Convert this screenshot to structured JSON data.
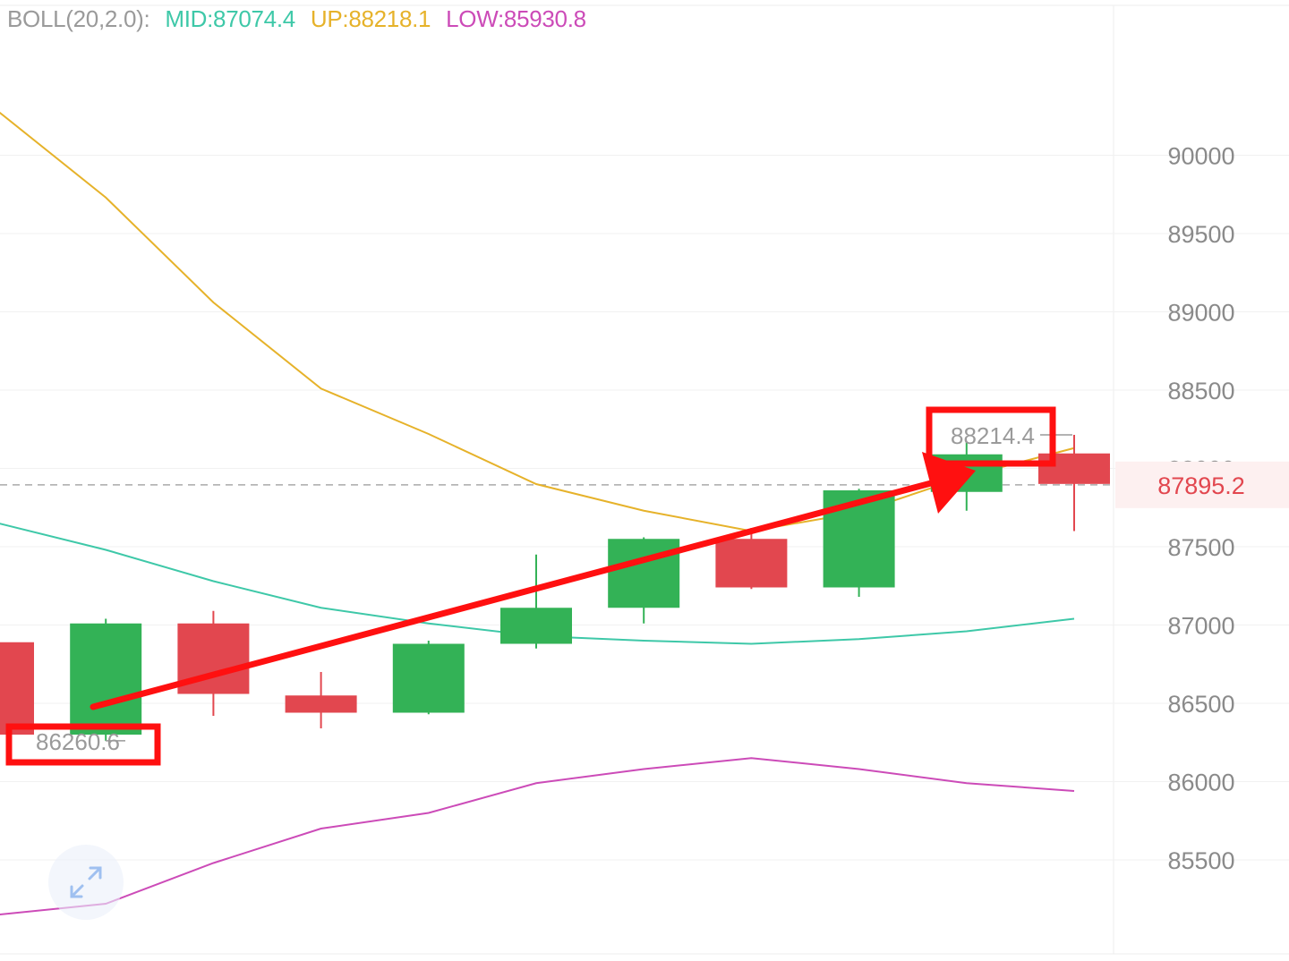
{
  "legend": {
    "indicator": "BOLL(20,2.0):",
    "mid": "MID:87074.4",
    "up": "UP:88218.1",
    "low": "LOW:85930.8"
  },
  "colors": {
    "bullish": "#33b256",
    "bearish": "#e2474f",
    "mid": "#3ec8a8",
    "up": "#e6b22a",
    "low": "#cc4bb8",
    "axis_text": "#8a8a8a",
    "grid": "#f1f1f1",
    "arrow": "#ff1010",
    "last_price": "#e2474f",
    "last_price_bg": "#fdf0f0"
  },
  "expand_icon": "expand-arrows-icon",
  "chart_data": {
    "type": "candlestick",
    "ylim": [
      84850,
      91250
    ],
    "y_ticks": [
      "85500",
      "86000",
      "86500",
      "87000",
      "87500",
      "88000",
      "88500",
      "89000",
      "89500",
      "90000"
    ],
    "candles": [
      {
        "open": 86890,
        "close": 86300,
        "high": 86890,
        "low": 86280
      },
      {
        "open": 86300,
        "close": 87010,
        "high": 87040,
        "low": 86260.6
      },
      {
        "open": 87010,
        "close": 86560,
        "high": 87090,
        "low": 86420
      },
      {
        "open": 86550,
        "close": 86440,
        "high": 86700,
        "low": 86340
      },
      {
        "open": 86440,
        "close": 86880,
        "high": 86900,
        "low": 86430
      },
      {
        "open": 86880,
        "close": 87110,
        "high": 87450,
        "low": 86850
      },
      {
        "open": 87110,
        "close": 87550,
        "high": 87560,
        "low": 87010
      },
      {
        "open": 87550,
        "close": 87240,
        "high": 87620,
        "low": 87230
      },
      {
        "open": 87240,
        "close": 87860,
        "high": 87870,
        "low": 87180
      },
      {
        "open": 87850,
        "close": 88090,
        "high": 88170,
        "low": 87730
      },
      {
        "open": 88090,
        "close": 87895.2,
        "high": 88214.4,
        "low": 87600
      }
    ],
    "series": [
      {
        "name": "UP",
        "values": [
          90280,
          89730,
          89060,
          88510,
          88220,
          87900,
          87730,
          87600,
          87720,
          87950,
          88130
        ]
      },
      {
        "name": "MID",
        "values": [
          87650,
          87480,
          87280,
          87110,
          87010,
          86930,
          86900,
          86880,
          86910,
          86960,
          87040
        ]
      },
      {
        "name": "LOW",
        "values": [
          85150,
          85220,
          85480,
          85700,
          85800,
          85990,
          86080,
          86150,
          86080,
          85990,
          85940
        ]
      }
    ],
    "last_price": "87895.2",
    "annotations": [
      {
        "text": "88214.4",
        "value": 88214.4
      },
      {
        "text": "86260.6",
        "value": 86260.6
      }
    ]
  }
}
